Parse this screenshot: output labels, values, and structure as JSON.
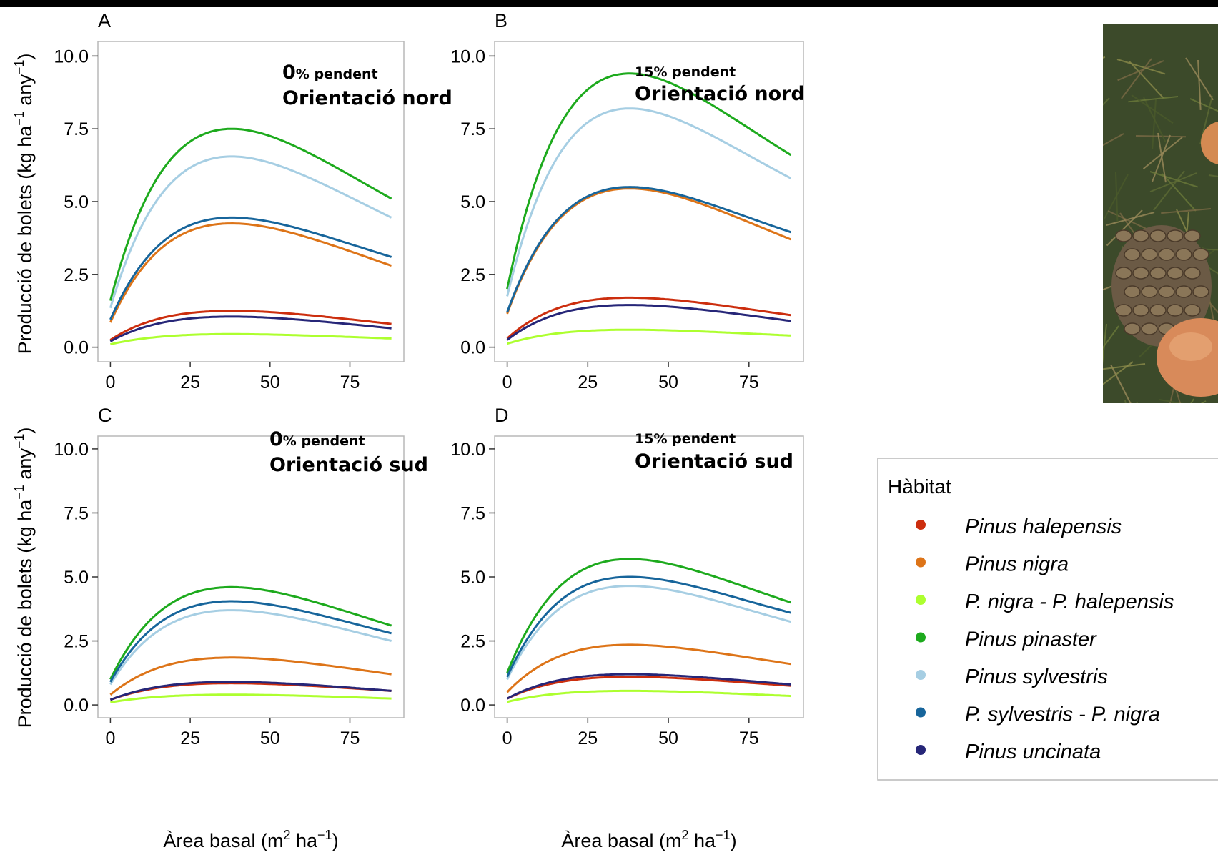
{
  "legend": {
    "title": "Hàbitat",
    "items": [
      {
        "label": "Pinus halepensis",
        "color": "#CC2E0E"
      },
      {
        "label": "Pinus nigra",
        "color": "#DD7418"
      },
      {
        "label": "P. nigra - P. halepensis",
        "color": "#ADFF2F"
      },
      {
        "label": "Pinus pinaster",
        "color": "#1DAA1D"
      },
      {
        "label": "Pinus sylvestris",
        "color": "#A6CEE3"
      },
      {
        "label": "P. sylvestris - P. nigra",
        "color": "#17659B"
      },
      {
        "label": "Pinus uncinata",
        "color": "#262678"
      }
    ]
  },
  "axis": {
    "ylabel_main": "Producció de bolets (kg ha",
    "ylabel_sup1": "−1",
    "ylabel_mid": " any",
    "ylabel_sup2": "−1",
    "ylabel_end": ")",
    "xlabel_main": "Àrea basal (m",
    "xlabel_sup1": "2",
    "xlabel_mid": " ha",
    "xlabel_sup2": "−1",
    "xlabel_end": ")"
  },
  "photo": {
    "description_icon": "mushroom-photo"
  },
  "chart_data": [
    {
      "type": "line",
      "panel": "A",
      "annotation": {
        "pct": "0",
        "pct_suffix": "% pendent",
        "orientation": "Orientació nord"
      },
      "xlim": [
        0,
        88
      ],
      "ylim": [
        0,
        10
      ],
      "x_ticks": [
        "0",
        "25",
        "50",
        "75"
      ],
      "y_ticks": [
        "0.0",
        "2.5",
        "5.0",
        "7.5",
        "10.0"
      ],
      "curve_peak_x": 38,
      "series": [
        {
          "name": "Pinus halepensis",
          "start": 0.25,
          "peak": 1.25,
          "end": 0.8
        },
        {
          "name": "Pinus nigra",
          "start": 0.85,
          "peak": 4.25,
          "end": 2.8
        },
        {
          "name": "P. nigra - P. halepensis",
          "start": 0.1,
          "peak": 0.45,
          "end": 0.3
        },
        {
          "name": "Pinus pinaster",
          "start": 1.6,
          "peak": 7.5,
          "end": 5.1
        },
        {
          "name": "Pinus sylvestris",
          "start": 1.35,
          "peak": 6.55,
          "end": 4.45
        },
        {
          "name": "P. sylvestris - P. nigra",
          "start": 0.95,
          "peak": 4.45,
          "end": 3.1
        },
        {
          "name": "Pinus uncinata",
          "start": 0.2,
          "peak": 1.05,
          "end": 0.65
        }
      ]
    },
    {
      "type": "line",
      "panel": "B",
      "annotation": {
        "pct": "15",
        "pct_suffix": "% pendent",
        "orientation": "Orientació nord"
      },
      "xlim": [
        0,
        88
      ],
      "ylim": [
        0,
        10
      ],
      "x_ticks": [
        "0",
        "25",
        "50",
        "75"
      ],
      "y_ticks": [
        "0.0",
        "2.5",
        "5.0",
        "7.5",
        "10.0"
      ],
      "curve_peak_x": 38,
      "series": [
        {
          "name": "Pinus halepensis",
          "start": 0.3,
          "peak": 1.7,
          "end": 1.1
        },
        {
          "name": "Pinus nigra",
          "start": 1.15,
          "peak": 5.45,
          "end": 3.7
        },
        {
          "name": "P. nigra - P. halepensis",
          "start": 0.12,
          "peak": 0.6,
          "end": 0.4
        },
        {
          "name": "Pinus pinaster",
          "start": 2.0,
          "peak": 9.4,
          "end": 6.6
        },
        {
          "name": "Pinus sylvestris",
          "start": 1.75,
          "peak": 8.2,
          "end": 5.8
        },
        {
          "name": "P. sylvestris - P. nigra",
          "start": 1.2,
          "peak": 5.5,
          "end": 3.95
        },
        {
          "name": "Pinus uncinata",
          "start": 0.25,
          "peak": 1.45,
          "end": 0.9
        }
      ]
    },
    {
      "type": "line",
      "panel": "C",
      "annotation": {
        "pct": "0",
        "pct_suffix": "% pendent",
        "orientation": "Orientació sud"
      },
      "xlim": [
        0,
        88
      ],
      "ylim": [
        0,
        10
      ],
      "x_ticks": [
        "0",
        "25",
        "50",
        "75"
      ],
      "y_ticks": [
        "0.0",
        "2.5",
        "5.0",
        "7.5",
        "10.0"
      ],
      "curve_peak_x": 38,
      "series": [
        {
          "name": "Pinus halepensis",
          "start": 0.2,
          "peak": 0.85,
          "end": 0.55
        },
        {
          "name": "Pinus nigra",
          "start": 0.4,
          "peak": 1.85,
          "end": 1.2
        },
        {
          "name": "P. nigra - P. halepensis",
          "start": 0.1,
          "peak": 0.4,
          "end": 0.25
        },
        {
          "name": "Pinus pinaster",
          "start": 1.0,
          "peak": 4.6,
          "end": 3.1
        },
        {
          "name": "Pinus sylvestris",
          "start": 0.8,
          "peak": 3.7,
          "end": 2.5
        },
        {
          "name": "P. sylvestris - P. nigra",
          "start": 0.9,
          "peak": 4.05,
          "end": 2.8
        },
        {
          "name": "Pinus uncinata",
          "start": 0.2,
          "peak": 0.9,
          "end": 0.55
        }
      ]
    },
    {
      "type": "line",
      "panel": "D",
      "annotation": {
        "pct": "15",
        "pct_suffix": "% pendent",
        "orientation": "Orientació sud"
      },
      "xlim": [
        0,
        88
      ],
      "ylim": [
        0,
        10
      ],
      "x_ticks": [
        "0",
        "25",
        "50",
        "75"
      ],
      "y_ticks": [
        "0.0",
        "2.5",
        "5.0",
        "7.5",
        "10.0"
      ],
      "curve_peak_x": 38,
      "series": [
        {
          "name": "Pinus halepensis",
          "start": 0.25,
          "peak": 1.1,
          "end": 0.75
        },
        {
          "name": "Pinus nigra",
          "start": 0.5,
          "peak": 2.35,
          "end": 1.6
        },
        {
          "name": "P. nigra - P. halepensis",
          "start": 0.12,
          "peak": 0.55,
          "end": 0.35
        },
        {
          "name": "Pinus pinaster",
          "start": 1.25,
          "peak": 5.7,
          "end": 4.0
        },
        {
          "name": "Pinus sylvestris",
          "start": 1.0,
          "peak": 4.65,
          "end": 3.25
        },
        {
          "name": "P. sylvestris - P. nigra",
          "start": 1.1,
          "peak": 5.0,
          "end": 3.6
        },
        {
          "name": "Pinus uncinata",
          "start": 0.25,
          "peak": 1.2,
          "end": 0.8
        }
      ]
    }
  ]
}
